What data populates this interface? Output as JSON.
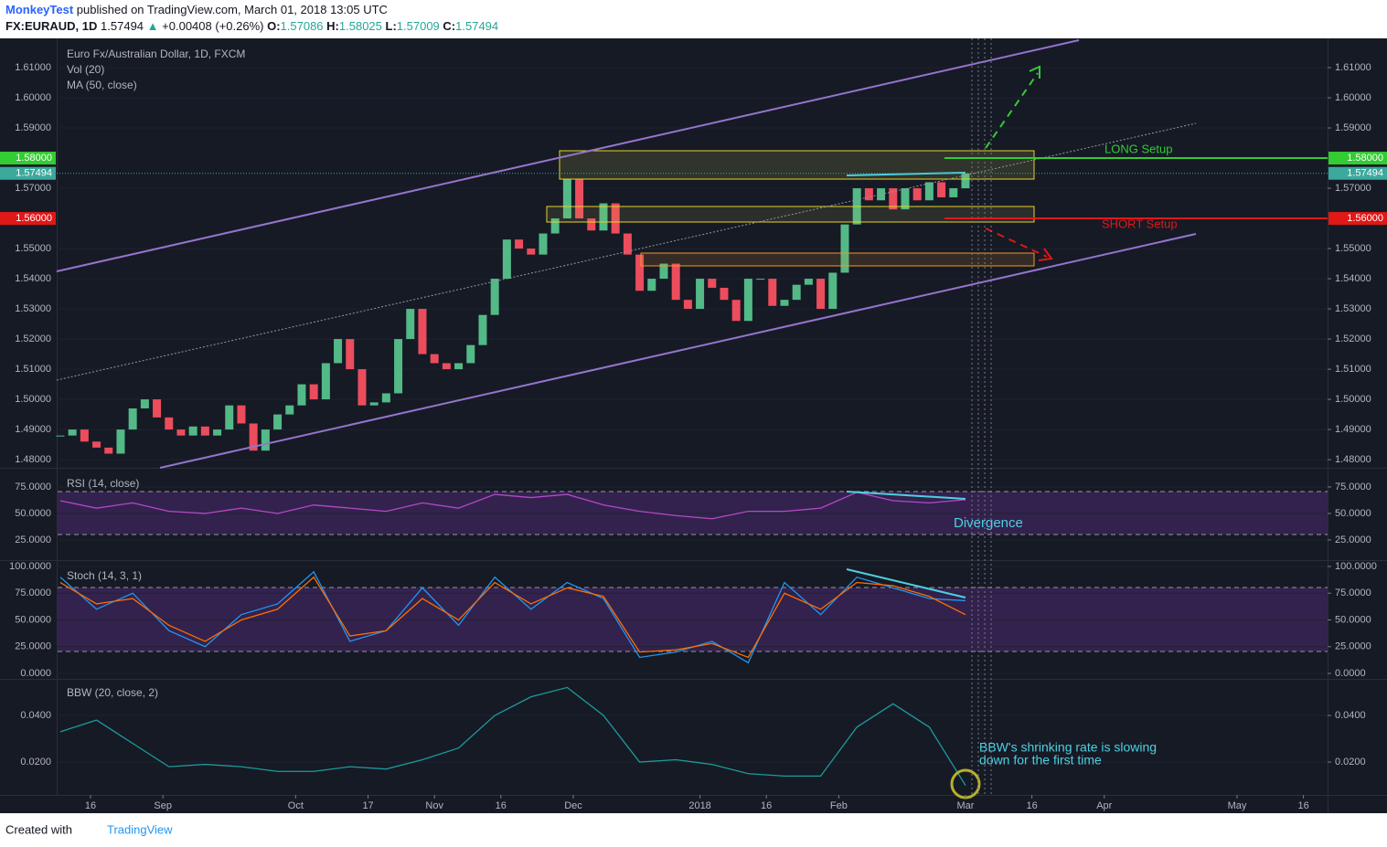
{
  "header": {
    "author": "MonkeyTest",
    "published": "published on TradingView.com, March 01, 2018 13:05 UTC",
    "symbol": "FX:EURAUD, 1D",
    "price": "1.57494",
    "arrow": "▲",
    "change": "+0.00408 (+0.26%)",
    "ohlc": [
      {
        "label": "O:",
        "value": "1.57086"
      },
      {
        "label": "H:",
        "value": "1.58025"
      },
      {
        "label": "L:",
        "value": "1.57009"
      },
      {
        "label": "C:",
        "value": "1.57494"
      }
    ]
  },
  "footer": {
    "created": "Created with",
    "brand": "TradingView"
  },
  "annotations": {
    "long": "LONG Setup",
    "short": "SHORT Setup",
    "divergence": "Divergence",
    "bbw": [
      "BBW's shrinking rate is slowing",
      "down for the first time"
    ]
  },
  "chart_data": [
    {
      "type": "candlestick",
      "title": "Euro Fx/Australian Dollar, 1D, FXCM",
      "legend": [
        "Vol (20)",
        "MA (50, close)"
      ],
      "x": [
        0,
        2,
        4,
        6,
        8,
        10,
        12,
        14,
        16,
        18,
        20,
        22,
        24,
        26,
        28,
        30,
        32,
        34,
        36,
        38,
        40,
        42,
        44,
        46,
        48,
        50,
        52,
        54,
        56,
        58,
        60,
        62,
        64,
        66,
        68,
        70,
        72,
        74,
        76,
        78,
        80,
        82,
        84,
        86,
        88,
        90,
        92,
        94,
        96,
        98,
        100,
        102,
        104,
        106,
        108,
        110,
        112,
        114,
        116,
        118,
        120,
        122,
        124,
        126,
        128,
        130,
        132,
        134,
        136,
        138,
        140,
        142,
        144,
        146,
        148,
        150
      ],
      "close": [
        1.488,
        1.49,
        1.486,
        1.484,
        1.482,
        1.49,
        1.497,
        1.5,
        1.494,
        1.49,
        1.488,
        1.491,
        1.488,
        1.49,
        1.498,
        1.492,
        1.483,
        1.49,
        1.495,
        1.498,
        1.505,
        1.5,
        1.512,
        1.52,
        1.51,
        1.498,
        1.499,
        1.502,
        1.52,
        1.53,
        1.515,
        1.512,
        1.51,
        1.512,
        1.518,
        1.528,
        1.54,
        1.553,
        1.55,
        1.548,
        1.555,
        1.56,
        1.573,
        1.56,
        1.556,
        1.565,
        1.555,
        1.548,
        1.536,
        1.54,
        1.545,
        1.533,
        1.53,
        1.54,
        1.537,
        1.533,
        1.526,
        1.54,
        1.54,
        1.531,
        1.533,
        1.538,
        1.54,
        1.53,
        1.542,
        1.558,
        1.57,
        1.566,
        1.57,
        1.563,
        1.57,
        1.566,
        1.572,
        1.567,
        1.57,
        1.57494
      ],
      "up_color": "#53b987",
      "down_color": "#eb4d5c",
      "xlim": [
        -0.6,
        210
      ],
      "xticks": [
        {
          "value": 5,
          "label": "16"
        },
        {
          "value": 17,
          "label": "Sep"
        },
        {
          "value": 39,
          "label": "Oct"
        },
        {
          "value": 51,
          "label": "17"
        },
        {
          "value": 62,
          "label": "Nov"
        },
        {
          "value": 73,
          "label": "16"
        },
        {
          "value": 85,
          "label": "Dec"
        },
        {
          "value": 106,
          "label": "2018"
        },
        {
          "value": 117,
          "label": "16"
        },
        {
          "value": 129,
          "label": "Feb"
        },
        {
          "value": 150,
          "label": "Mar"
        },
        {
          "value": 161,
          "label": "16"
        },
        {
          "value": 173,
          "label": "Apr"
        },
        {
          "value": 195,
          "label": "May"
        },
        {
          "value": 206,
          "label": "16"
        }
      ],
      "ylim": [
        1.4773,
        1.6197
      ],
      "yticks": [
        {
          "value": 1.48,
          "label": "1.48000"
        },
        {
          "value": 1.49,
          "label": "1.49000"
        },
        {
          "value": 1.5,
          "label": "1.50000"
        },
        {
          "value": 1.51,
          "label": "1.51000"
        },
        {
          "value": 1.52,
          "label": "1.52000"
        },
        {
          "value": 1.53,
          "label": "1.53000"
        },
        {
          "value": 1.54,
          "label": "1.54000"
        },
        {
          "value": 1.55,
          "label": "1.55000"
        },
        {
          "value": 1.57,
          "label": "1.57000"
        },
        {
          "value": 1.59,
          "label": "1.59000"
        },
        {
          "value": 1.6,
          "label": "1.60000"
        },
        {
          "value": 1.61,
          "label": "1.61000"
        }
      ],
      "levels": [
        {
          "value": 1.58,
          "label": "1.58000",
          "color": "#33cc33"
        },
        {
          "value": 1.57494,
          "label": "1.57494",
          "color": "#3ba99c"
        },
        {
          "value": 1.56,
          "label": "1.56000",
          "color": "#e01818"
        }
      ],
      "grid": true
    },
    {
      "type": "line",
      "title": "RSI (14, close)",
      "x": [
        0,
        6,
        12,
        18,
        24,
        30,
        36,
        42,
        48,
        54,
        60,
        66,
        72,
        78,
        84,
        90,
        96,
        102,
        108,
        114,
        120,
        126,
        132,
        138,
        144,
        150
      ],
      "series": [
        {
          "name": "RSI",
          "color": "#b548c6",
          "values": [
            62,
            55,
            60,
            52,
            50,
            55,
            50,
            58,
            55,
            52,
            60,
            55,
            68,
            65,
            68,
            58,
            52,
            48,
            45,
            52,
            52,
            55,
            70,
            62,
            60,
            63
          ]
        }
      ],
      "ylim": [
        6,
        92.2
      ],
      "yticks": [
        {
          "value": 25,
          "label": "25.0000"
        },
        {
          "value": 50,
          "label": "50.0000"
        },
        {
          "value": 75,
          "label": "75.0000"
        }
      ],
      "grid": true
    },
    {
      "type": "line",
      "title": "Stoch (14, 3, 1)",
      "x": [
        0,
        6,
        12,
        18,
        24,
        30,
        36,
        42,
        48,
        54,
        60,
        66,
        72,
        78,
        84,
        90,
        96,
        102,
        108,
        114,
        120,
        126,
        132,
        138,
        144,
        150
      ],
      "series": [
        {
          "name": "%K",
          "color": "#2196f3",
          "values": [
            90,
            60,
            75,
            40,
            25,
            55,
            65,
            95,
            30,
            40,
            80,
            45,
            90,
            60,
            85,
            70,
            15,
            20,
            30,
            10,
            85,
            55,
            90,
            80,
            70,
            68
          ]
        },
        {
          "name": "%D",
          "color": "#ff6d00",
          "values": [
            85,
            65,
            70,
            45,
            30,
            50,
            60,
            90,
            35,
            40,
            70,
            50,
            85,
            65,
            80,
            72,
            20,
            22,
            28,
            15,
            75,
            60,
            85,
            82,
            72,
            55
          ]
        }
      ],
      "ylim": [
        -5.1,
        105.1
      ],
      "yticks": [
        {
          "value": 0,
          "label": "0.0000"
        },
        {
          "value": 25,
          "label": "25.0000"
        },
        {
          "value": 50,
          "label": "50.0000"
        },
        {
          "value": 75,
          "label": "75.0000"
        },
        {
          "value": 100,
          "label": "100.0000"
        }
      ],
      "grid": true
    },
    {
      "type": "line",
      "title": "BBW (20, close, 2)",
      "x": [
        0,
        6,
        12,
        18,
        24,
        30,
        36,
        42,
        48,
        54,
        60,
        66,
        72,
        78,
        84,
        90,
        96,
        102,
        108,
        114,
        120,
        126,
        132,
        138,
        144,
        150
      ],
      "series": [
        {
          "name": "BBW",
          "color": "#1c9a9a",
          "values": [
            0.033,
            0.038,
            0.028,
            0.018,
            0.019,
            0.018,
            0.016,
            0.016,
            0.018,
            0.017,
            0.021,
            0.026,
            0.04,
            0.048,
            0.052,
            0.04,
            0.02,
            0.021,
            0.019,
            0.015,
            0.014,
            0.014,
            0.035,
            0.045,
            0.035,
            0.01
          ]
        }
      ],
      "ylim": [
        0.0059,
        0.0553
      ],
      "yticks": [
        {
          "value": 0.02,
          "label": "0.0200"
        },
        {
          "value": 0.04,
          "label": "0.0400"
        }
      ],
      "grid": true
    }
  ]
}
